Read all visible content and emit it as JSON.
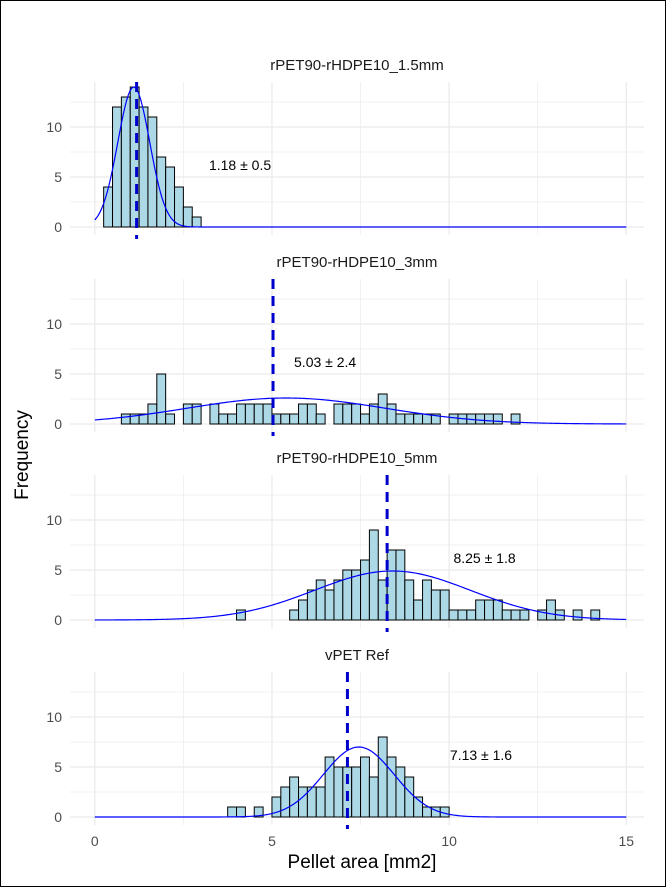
{
  "chart_data": {
    "type": "histogram",
    "xlabel": "Pellet area  [mm2]",
    "ylabel": "Frequency",
    "xlim": [
      0,
      15
    ],
    "ylim": [
      0,
      14
    ],
    "x_ticks": [
      0,
      5,
      10,
      15
    ],
    "y_ticks": [
      0,
      5,
      10
    ],
    "bin_width": 0.25,
    "colors": {
      "bar_fill": "#add8e6",
      "bar_stroke": "#000000",
      "density_line": "#0000ff",
      "mean_line": "#0000cd",
      "grid": "#ebebeb"
    },
    "panels": [
      {
        "title": "rPET90-rHDPE10_1.5mm",
        "annotation": "1.18 ± 0.5",
        "annotation_x": 4.1,
        "annotation_y": 6.2,
        "mean": 1.18,
        "bins": [
          [
            0.25,
            4
          ],
          [
            0.5,
            12
          ],
          [
            0.75,
            13
          ],
          [
            1.0,
            14
          ],
          [
            1.25,
            12
          ],
          [
            1.5,
            11
          ],
          [
            1.75,
            7
          ],
          [
            2.0,
            6
          ],
          [
            2.25,
            4
          ],
          [
            2.5,
            2
          ],
          [
            2.75,
            1
          ]
        ],
        "density": {
          "mu": 1.1,
          "sigma": 0.45,
          "peak": 14
        }
      },
      {
        "title": "rPET90-rHDPE10_3mm",
        "annotation": "5.03 ± 2.4",
        "annotation_x": 6.5,
        "annotation_y": 6.2,
        "mean": 5.03,
        "bins": [
          [
            0.75,
            1
          ],
          [
            1.0,
            1
          ],
          [
            1.25,
            1
          ],
          [
            1.5,
            2
          ],
          [
            1.75,
            5
          ],
          [
            2.0,
            1
          ],
          [
            2.5,
            2
          ],
          [
            2.75,
            2
          ],
          [
            3.25,
            2
          ],
          [
            3.5,
            1
          ],
          [
            3.75,
            1
          ],
          [
            4.0,
            2
          ],
          [
            4.25,
            2
          ],
          [
            4.5,
            2
          ],
          [
            4.75,
            2
          ],
          [
            5.0,
            1
          ],
          [
            5.25,
            1
          ],
          [
            5.5,
            1
          ],
          [
            5.75,
            2
          ],
          [
            6.0,
            2
          ],
          [
            6.25,
            1
          ],
          [
            6.75,
            2
          ],
          [
            7.0,
            2
          ],
          [
            7.25,
            2
          ],
          [
            7.5,
            1
          ],
          [
            7.75,
            2
          ],
          [
            8.0,
            3
          ],
          [
            8.25,
            2
          ],
          [
            8.5,
            1
          ],
          [
            8.75,
            1
          ],
          [
            9.0,
            1
          ],
          [
            9.25,
            1
          ],
          [
            9.5,
            1
          ],
          [
            10.0,
            1
          ],
          [
            10.25,
            1
          ],
          [
            10.5,
            1
          ],
          [
            10.75,
            1
          ],
          [
            11.0,
            1
          ],
          [
            11.25,
            1
          ],
          [
            11.75,
            1
          ]
        ],
        "density": {
          "mu": 5.4,
          "sigma": 2.8,
          "peak": 2.6
        }
      },
      {
        "title": "rPET90-rHDPE10_5mm",
        "annotation": "8.25 ± 1.8",
        "annotation_x": 11.0,
        "annotation_y": 6.2,
        "mean": 8.25,
        "bins": [
          [
            4.0,
            1
          ],
          [
            5.5,
            1
          ],
          [
            5.75,
            2
          ],
          [
            6.0,
            3
          ],
          [
            6.25,
            4
          ],
          [
            6.5,
            3
          ],
          [
            6.75,
            4
          ],
          [
            7.0,
            5
          ],
          [
            7.25,
            5
          ],
          [
            7.5,
            6
          ],
          [
            7.75,
            9
          ],
          [
            8.0,
            4
          ],
          [
            8.25,
            7
          ],
          [
            8.5,
            7
          ],
          [
            8.75,
            4
          ],
          [
            9.0,
            2
          ],
          [
            9.25,
            4
          ],
          [
            9.5,
            3
          ],
          [
            9.75,
            3
          ],
          [
            10.0,
            1
          ],
          [
            10.25,
            1
          ],
          [
            10.5,
            1
          ],
          [
            10.75,
            2
          ],
          [
            11.0,
            2
          ],
          [
            11.25,
            2
          ],
          [
            11.5,
            1
          ],
          [
            11.75,
            1
          ],
          [
            12.0,
            1
          ],
          [
            12.5,
            1
          ],
          [
            12.75,
            2
          ],
          [
            13.0,
            1
          ],
          [
            13.5,
            1
          ],
          [
            14.0,
            1
          ]
        ],
        "density": {
          "mu": 8.4,
          "sigma": 2.2,
          "peak": 4.9
        }
      },
      {
        "title": "vPET Ref",
        "annotation": "7.13 ± 1.6",
        "annotation_x": 10.9,
        "annotation_y": 6.2,
        "mean": 7.13,
        "bins": [
          [
            3.75,
            1
          ],
          [
            4.0,
            1
          ],
          [
            4.5,
            1
          ],
          [
            5.0,
            2
          ],
          [
            5.25,
            3
          ],
          [
            5.5,
            4
          ],
          [
            5.75,
            3
          ],
          [
            6.0,
            3
          ],
          [
            6.25,
            3
          ],
          [
            6.5,
            6
          ],
          [
            6.75,
            5
          ],
          [
            7.0,
            5
          ],
          [
            7.25,
            5
          ],
          [
            7.5,
            6
          ],
          [
            7.75,
            4
          ],
          [
            8.0,
            8
          ],
          [
            8.25,
            6
          ],
          [
            8.5,
            5
          ],
          [
            8.75,
            4
          ],
          [
            9.0,
            2
          ],
          [
            9.25,
            1
          ],
          [
            9.5,
            1
          ],
          [
            9.75,
            1
          ]
        ],
        "density": {
          "mu": 7.45,
          "sigma": 1.0,
          "peak": 7
        }
      }
    ]
  }
}
